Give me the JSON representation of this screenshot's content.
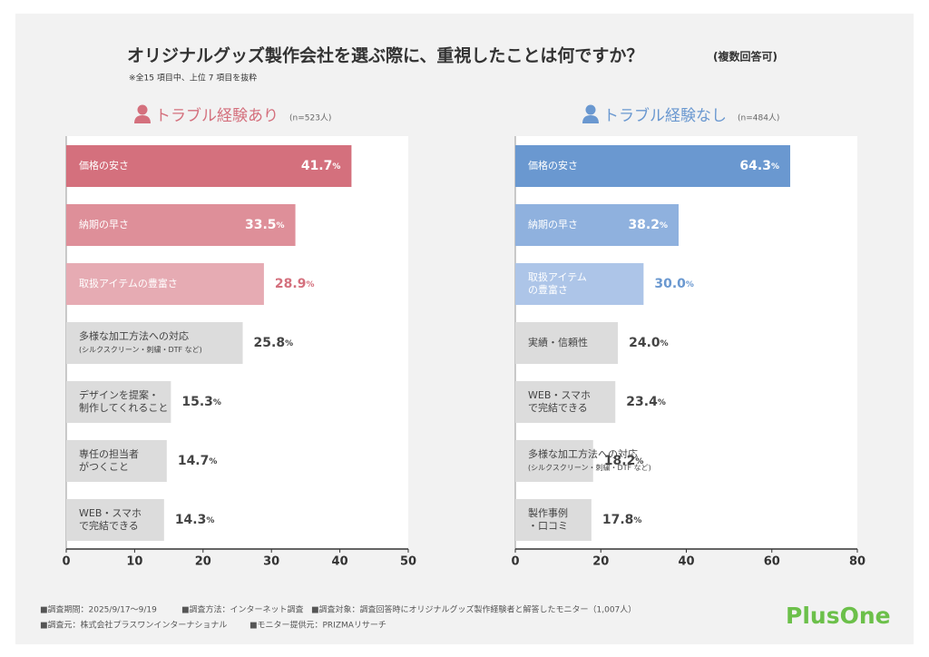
{
  "title": "オリジナルグッズ製作会社を選ぶ際に、重視したことは何ですか？",
  "title_note": "(複数回答可)",
  "note": "※全15 項目中、上位 7 項目を抜粋",
  "chart_data": [
    {
      "type": "bar",
      "orientation": "horizontal",
      "title": "トラブル経験あり",
      "subtitle": "(n=523人)",
      "accent": "#d4707d",
      "categories": [
        "価格の安さ",
        "納期の早さ",
        "取扱アイテムの豊富さ",
        "多様な加工方法への対応\n(シルクスクリーン・刺繍・DTF など)",
        "デザインを提案・\n制作してくれること",
        "専任の担当者\nがつくこと",
        "WEB・スマホ\nで完結できる"
      ],
      "values": [
        41.7,
        33.5,
        28.9,
        25.8,
        15.3,
        14.7,
        14.3
      ],
      "value_labels": [
        "41.7%",
        "33.5%",
        "28.9%",
        "25.8%",
        "15.3%",
        "14.7%",
        "14.3%"
      ],
      "colors": [
        "#d4707d",
        "#de8f99",
        "#e6abb3",
        "#dcdcdc",
        "#dcdcdc",
        "#dcdcdc",
        "#dcdcdc"
      ],
      "xlim": [
        0,
        50
      ],
      "xticks": [
        0,
        10,
        20,
        30,
        40,
        50
      ]
    },
    {
      "type": "bar",
      "orientation": "horizontal",
      "title": "トラブル経験なし",
      "subtitle": "(n=484人)",
      "accent": "#6a98d0",
      "categories": [
        "価格の安さ",
        "納期の早さ",
        "取扱アイテム\nの豊富さ",
        "実績・信頼性",
        "WEB・スマホ\nで完結できる",
        "多様な加工方法への対応\n(シルクスクリーン・刺繍・DTF など)",
        "製作事例\n・口コミ"
      ],
      "values": [
        64.3,
        38.2,
        30.0,
        24.0,
        23.4,
        18.2,
        17.8
      ],
      "value_labels": [
        "64.3%",
        "38.2%",
        "30.0%",
        "24.0%",
        "23.4%",
        "18.2%",
        "17.8%"
      ],
      "colors": [
        "#6a98d0",
        "#8fb1de",
        "#adc5e8",
        "#dcdcdc",
        "#dcdcdc",
        "#dcdcdc",
        "#dcdcdc"
      ],
      "xlim": [
        0,
        80
      ],
      "xticks": [
        0,
        20,
        40,
        60,
        80
      ]
    }
  ],
  "footer": [
    "■調査期間：2025/9/17～9/19",
    "■調査方法：インターネット調査",
    "■調査対象：調査回答時にオリジナルグッズ製作経験者と解答したモニター（1,007人）",
    "■調査元：株式会社プラスワンインターナショナル",
    "■モニター提供元：PRIZMAリサーチ"
  ],
  "logo": "PlusOne"
}
